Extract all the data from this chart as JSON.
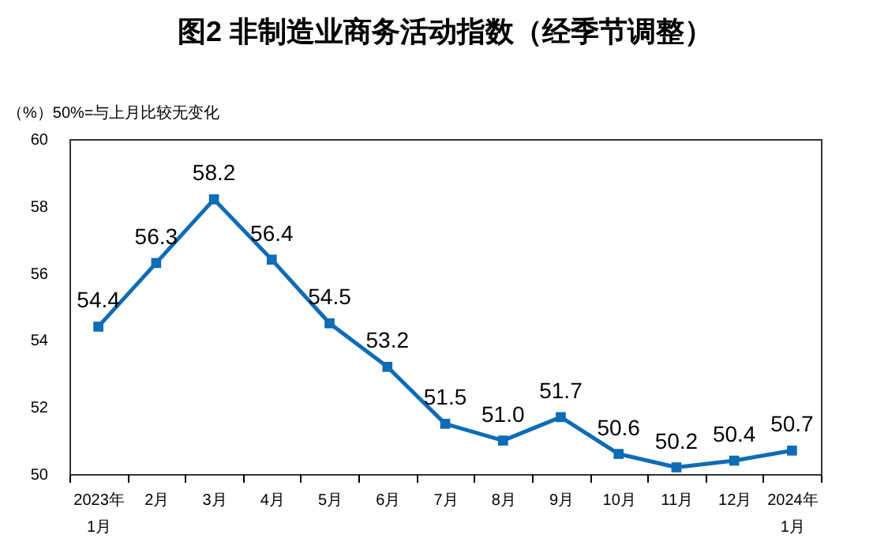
{
  "chart_data": {
    "type": "line",
    "title": "图2 非制造业商务活动指数（经季节调整）",
    "ylabel": "（%）50%=与上月比较无变化",
    "categories": [
      "2023年\n1月",
      "2月",
      "3月",
      "4月",
      "5月",
      "6月",
      "7月",
      "8月",
      "9月",
      "10月",
      "11月",
      "12月",
      "2024年\n1月"
    ],
    "series": [
      {
        "color": "#0f6cb6",
        "values": [
          54.4,
          56.3,
          58.2,
          56.4,
          54.5,
          53.2,
          51.5,
          51.0,
          51.7,
          50.6,
          50.2,
          50.4,
          50.7
        ],
        "value_labels": [
          "54.4",
          "56.3",
          "58.2",
          "56.4",
          "54.5",
          "53.2",
          "51.5",
          "51.0",
          "51.7",
          "50.6",
          "50.2",
          "50.4",
          "50.7"
        ]
      }
    ],
    "ylim": [
      50,
      60
    ],
    "yticks": [
      50,
      52,
      54,
      56,
      58,
      60
    ],
    "grid": false,
    "marker": "square",
    "line_style": "solid"
  }
}
